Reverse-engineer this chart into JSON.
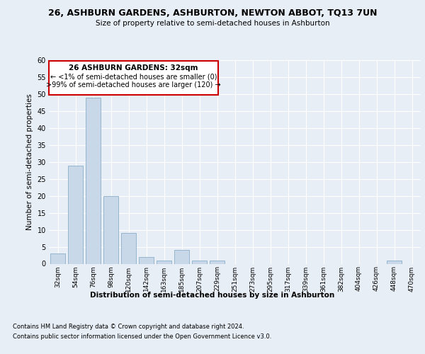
{
  "title": "26, ASHBURN GARDENS, ASHBURTON, NEWTON ABBOT, TQ13 7UN",
  "subtitle": "Size of property relative to semi-detached houses in Ashburton",
  "xlabel": "Distribution of semi-detached houses by size in Ashburton",
  "ylabel": "Number of semi-detached properties",
  "footnote1": "Contains HM Land Registry data © Crown copyright and database right 2024.",
  "footnote2": "Contains public sector information licensed under the Open Government Licence v3.0.",
  "annotation_title": "26 ASHBURN GARDENS: 32sqm",
  "annotation_line1": "← <1% of semi-detached houses are smaller (0)",
  "annotation_line2": ">99% of semi-detached houses are larger (120) →",
  "bar_color": "#c8d8e8",
  "bar_edge_color": "#8aafc8",
  "annotation_box_color": "#ffffff",
  "annotation_box_edge": "#cc0000",
  "bg_color": "#e8eef5",
  "plot_bg_color": "#e8eef5",
  "grid_color": "#ffffff",
  "categories": [
    "32sqm",
    "54sqm",
    "76sqm",
    "98sqm",
    "120sqm",
    "142sqm",
    "163sqm",
    "185sqm",
    "207sqm",
    "229sqm",
    "251sqm",
    "273sqm",
    "295sqm",
    "317sqm",
    "339sqm",
    "361sqm",
    "382sqm",
    "404sqm",
    "426sqm",
    "448sqm",
    "470sqm"
  ],
  "values": [
    3,
    29,
    49,
    20,
    9,
    2,
    1,
    4,
    1,
    1,
    0,
    0,
    0,
    0,
    0,
    0,
    0,
    0,
    0,
    1,
    0
  ],
  "ylim": [
    0,
    60
  ],
  "yticks": [
    0,
    5,
    10,
    15,
    20,
    25,
    30,
    35,
    40,
    45,
    50,
    55,
    60
  ]
}
